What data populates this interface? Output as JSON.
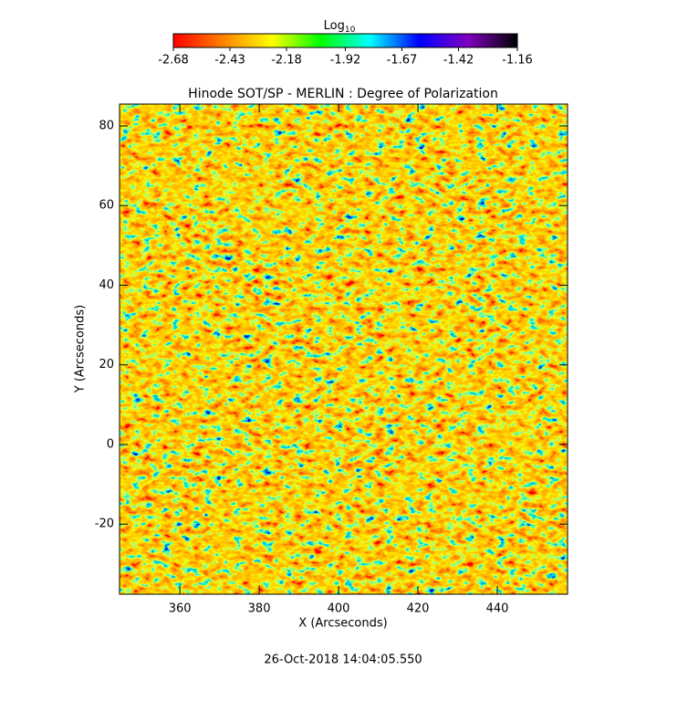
{
  "chart_data": {
    "type": "heatmap",
    "title": "Hinode SOT/SP - MERLIN : Degree of Polarization",
    "xlabel": "X (Arcseconds)",
    "ylabel": "Y (Arcseconds)",
    "xlim": [
      344.8,
      457.7
    ],
    "xticks": [
      360,
      380,
      400,
      420,
      440
    ],
    "ylim": [
      -37.6,
      85.5
    ],
    "yticks": [
      -20,
      0,
      20,
      40,
      60,
      80
    ],
    "colormap": [
      "#ff0000",
      "#ff8000",
      "#ffff00",
      "#00ff00",
      "#00ffff",
      "#0000ff",
      "#8000c0",
      "#000000"
    ],
    "colorbar": {
      "label": "Log",
      "label_subscript": "10",
      "lim": [
        -2.68,
        -1.16
      ],
      "ticks": [
        -2.68,
        -2.43,
        -2.18,
        -1.92,
        -1.67,
        -1.42,
        -1.16
      ]
    },
    "footer": "26-Oct-2018 14:04:05.550"
  }
}
